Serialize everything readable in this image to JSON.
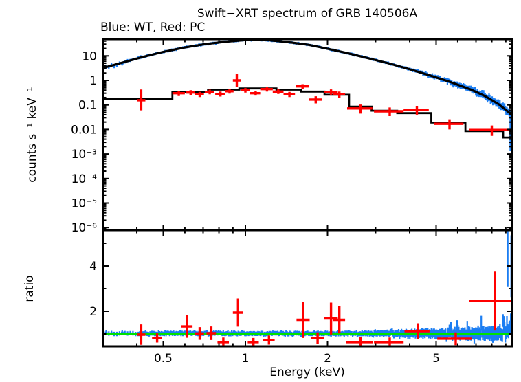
{
  "title": "Swift−XRT spectrum of GRB 140506A",
  "subtitle": "Blue: WT, Red: PC",
  "legend": {
    "blue_series": "WT",
    "red_series": "PC"
  },
  "colors": {
    "wt_data": "#1b7df2",
    "pc_data": "#ff0000",
    "model": "#000000",
    "unity_line": "#00e100",
    "frame": "#000000",
    "text": "#000000",
    "background": "#ffffff"
  },
  "chart_data": {
    "type": "line",
    "title": "Swift−XRT spectrum of GRB 140506A",
    "subtitle": "Blue: WT, Red: PC",
    "x_axis": {
      "label": "Energy (keV)",
      "scale": "log",
      "range": [
        0.301,
        9.49
      ],
      "major_ticks": [
        0.5,
        1,
        2,
        5
      ],
      "tick_labels": [
        "0.5",
        "1",
        "2",
        "5"
      ],
      "minor_ticks": [
        0.3,
        0.4,
        0.6,
        0.7,
        0.8,
        0.9,
        3,
        4,
        6,
        7,
        8,
        9
      ]
    },
    "top_panel": {
      "y_axis": {
        "label": "counts s⁻¹ keV⁻¹",
        "scale": "log",
        "range": [
          7.9e-07,
          48
        ],
        "major_ticks": [
          10,
          1,
          0.1,
          0.01,
          0.001,
          0.0001,
          1e-05,
          1e-06
        ],
        "tick_labels": [
          "10",
          "1",
          "0.1",
          "0.01",
          "10⁻³",
          "10⁻⁴",
          "10⁻⁵",
          "10⁻⁶"
        ]
      },
      "wt_model": {
        "energy": [
          0.3,
          0.36,
          0.42,
          0.5,
          0.6,
          0.71,
          0.85,
          1.0,
          1.1,
          1.22,
          1.44,
          1.71,
          1.98,
          2.36,
          2.8,
          3.34,
          3.98,
          4.74,
          5.65,
          6.72,
          7.55,
          8.49,
          9.55
        ],
        "counts": [
          3.2,
          5.6,
          9.0,
          14.5,
          22,
          30,
          38,
          44,
          45,
          43.5,
          36,
          28,
          20,
          13,
          8.2,
          5.0,
          2.9,
          1.6,
          0.85,
          0.42,
          0.23,
          0.105,
          0.037
        ]
      },
      "wt_data": {
        "segments": [
          [
            0.302,
            0.405,
            14
          ],
          [
            0.407,
            5.5,
            330
          ],
          [
            5.52,
            9.45,
            83
          ]
        ],
        "scatter_base_dex": 0.035,
        "scatter_high_energy_dex": 0.25,
        "scatter_pivot_keV": 3.5,
        "seed": 20140506,
        "spikes": [
          {
            "energy": 9.35,
            "from": 0.0013,
            "to": 0.06
          }
        ]
      },
      "pc_model_steps": {
        "edges": [
          0.3,
          0.54,
          0.73,
          0.95,
          1.3,
          1.6,
          1.95,
          2.4,
          2.9,
          3.6,
          4.8,
          6.4,
          8.8,
          10.0
        ],
        "levels": [
          0.18,
          0.33,
          0.42,
          0.47,
          0.42,
          0.35,
          0.26,
          0.085,
          0.058,
          0.046,
          0.019,
          0.0085,
          0.0047
        ]
      },
      "pc_data": {
        "energy": [
          0.415,
          0.57,
          0.63,
          0.68,
          0.74,
          0.81,
          0.875,
          0.93,
          1.0,
          1.09,
          1.2,
          1.32,
          1.45,
          1.62,
          1.81,
          2.06,
          2.21,
          2.64,
          3.38,
          4.25,
          5.6,
          8.0
        ],
        "counts": [
          0.155,
          0.3,
          0.32,
          0.27,
          0.34,
          0.28,
          0.36,
          1.0,
          0.4,
          0.3,
          0.44,
          0.35,
          0.27,
          0.57,
          0.165,
          0.34,
          0.27,
          0.072,
          0.055,
          0.062,
          0.017,
          0.0095
        ],
        "xerr": [
          0.015,
          0.03,
          0.025,
          0.025,
          0.03,
          0.035,
          0.03,
          0.03,
          0.04,
          0.05,
          0.06,
          0.06,
          0.07,
          0.09,
          0.1,
          0.12,
          0.11,
          0.28,
          0.42,
          0.45,
          0.7,
          1.4
        ],
        "yerr_lo": [
          0.095,
          0.07,
          0.07,
          0.06,
          0.07,
          0.06,
          0.07,
          0.45,
          0.08,
          0.06,
          0.09,
          0.07,
          0.06,
          0.12,
          0.05,
          0.08,
          0.07,
          0.028,
          0.02,
          0.022,
          0.007,
          0.004
        ],
        "yerr_hi": [
          0.27,
          0.08,
          0.08,
          0.07,
          0.08,
          0.07,
          0.08,
          0.85,
          0.09,
          0.07,
          0.1,
          0.08,
          0.07,
          0.13,
          0.06,
          0.09,
          0.08,
          0.032,
          0.024,
          0.026,
          0.009,
          0.005
        ]
      }
    },
    "ratio_panel": {
      "y_axis": {
        "label": "ratio",
        "scale": "linear",
        "range": [
          0.455,
          5.57
        ],
        "major_ticks": [
          2,
          4
        ],
        "tick_labels": [
          "2",
          "4"
        ],
        "minor_ticks": [
          1,
          3,
          5
        ]
      },
      "unity_line": {
        "value": 1
      },
      "wt_ratio": {
        "base": 1.0,
        "scatter_base": 0.055,
        "scatter_high_energy": 0.28,
        "scatter_pivot_keV": 2.5,
        "spikes": [
          {
            "energy": 9.15,
            "from": 3.1,
            "to": 5.6
          },
          {
            "energy": 9.42,
            "from": 2.6,
            "to": 5.35
          }
        ]
      },
      "pc_ratio": {
        "energy": [
          0.415,
          0.475,
          0.61,
          0.68,
          0.75,
          0.83,
          0.94,
          1.07,
          1.22,
          1.63,
          1.84,
          2.06,
          2.21,
          2.64,
          3.38,
          4.28,
          5.9,
          8.2
        ],
        "ratio": [
          0.97,
          0.82,
          1.33,
          1.02,
          1.03,
          0.64,
          1.94,
          0.64,
          0.73,
          1.62,
          0.82,
          1.68,
          1.62,
          0.64,
          0.64,
          1.12,
          0.79,
          2.45
        ],
        "xerr": [
          0.015,
          0.02,
          0.03,
          0.025,
          0.03,
          0.04,
          0.04,
          0.05,
          0.06,
          0.09,
          0.1,
          0.12,
          0.11,
          0.3,
          0.42,
          0.45,
          0.85,
          1.6
        ],
        "yerr": [
          0.45,
          0.2,
          0.5,
          0.28,
          0.3,
          0.2,
          0.62,
          0.18,
          0.2,
          0.8,
          0.25,
          0.7,
          0.6,
          0.22,
          0.2,
          0.35,
          0.28,
          1.3
        ]
      }
    }
  }
}
